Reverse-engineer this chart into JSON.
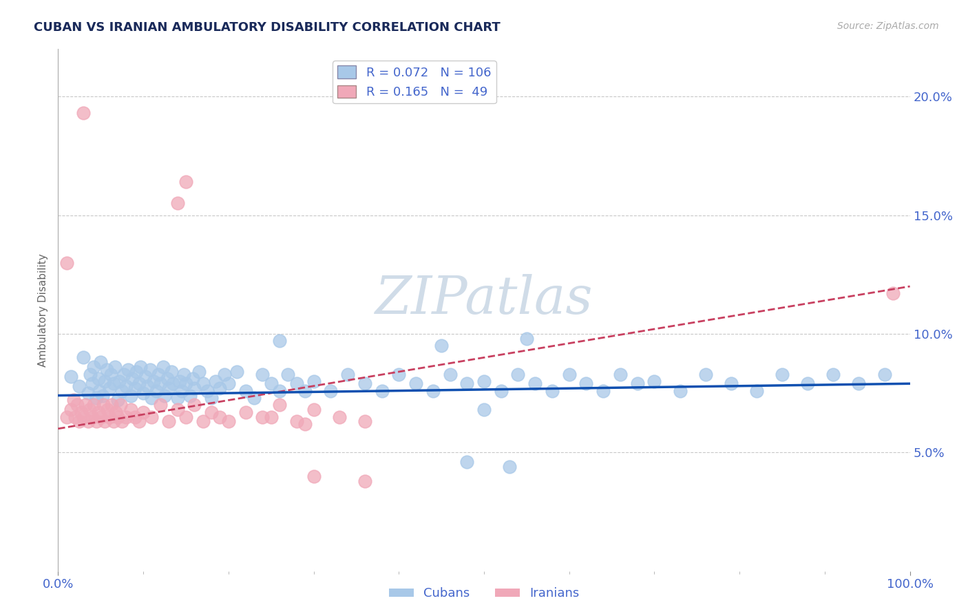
{
  "title": "CUBAN VS IRANIAN AMBULATORY DISABILITY CORRELATION CHART",
  "source": "Source: ZipAtlas.com",
  "ylabel": "Ambulatory Disability",
  "xlim": [
    0.0,
    1.0
  ],
  "ylim": [
    0.0,
    0.22
  ],
  "yticks": [
    0.05,
    0.1,
    0.15,
    0.2
  ],
  "ytick_labels": [
    "5.0%",
    "10.0%",
    "15.0%",
    "20.0%"
  ],
  "xtick_labels": [
    "0.0%",
    "100.0%"
  ],
  "cuban_color": "#a8c8e8",
  "iranian_color": "#f0a8b8",
  "trend_cuban_color": "#1050b0",
  "trend_iranian_color": "#c84060",
  "title_color": "#1a2a5a",
  "axis_color": "#4466cc",
  "background_color": "#ffffff",
  "R_cuban": 0.072,
  "N_cuban": 106,
  "R_iranian": 0.165,
  "N_iranian": 49,
  "cuban_x": [
    0.015,
    0.025,
    0.03,
    0.035,
    0.038,
    0.04,
    0.042,
    0.045,
    0.047,
    0.048,
    0.05,
    0.052,
    0.055,
    0.057,
    0.06,
    0.062,
    0.065,
    0.067,
    0.07,
    0.072,
    0.075,
    0.077,
    0.08,
    0.082,
    0.085,
    0.087,
    0.09,
    0.092,
    0.095,
    0.097,
    0.1,
    0.102,
    0.105,
    0.108,
    0.11,
    0.112,
    0.115,
    0.118,
    0.12,
    0.123,
    0.125,
    0.128,
    0.13,
    0.133,
    0.135,
    0.14,
    0.143,
    0.145,
    0.148,
    0.15,
    0.155,
    0.158,
    0.16,
    0.165,
    0.17,
    0.175,
    0.18,
    0.185,
    0.19,
    0.195,
    0.2,
    0.21,
    0.22,
    0.23,
    0.24,
    0.25,
    0.26,
    0.27,
    0.28,
    0.29,
    0.3,
    0.32,
    0.34,
    0.36,
    0.38,
    0.4,
    0.42,
    0.44,
    0.46,
    0.48,
    0.5,
    0.52,
    0.54,
    0.56,
    0.58,
    0.6,
    0.62,
    0.64,
    0.66,
    0.68,
    0.7,
    0.73,
    0.76,
    0.79,
    0.82,
    0.85,
    0.88,
    0.91,
    0.94,
    0.97,
    0.26,
    0.45,
    0.48,
    0.5,
    0.53,
    0.55
  ],
  "cuban_y": [
    0.082,
    0.078,
    0.09,
    0.075,
    0.083,
    0.079,
    0.086,
    0.073,
    0.081,
    0.076,
    0.088,
    0.074,
    0.08,
    0.085,
    0.077,
    0.083,
    0.079,
    0.086,
    0.072,
    0.08,
    0.076,
    0.083,
    0.078,
    0.085,
    0.074,
    0.081,
    0.077,
    0.084,
    0.079,
    0.086,
    0.075,
    0.082,
    0.078,
    0.085,
    0.073,
    0.08,
    0.076,
    0.083,
    0.079,
    0.086,
    0.074,
    0.081,
    0.077,
    0.084,
    0.079,
    0.073,
    0.08,
    0.076,
    0.083,
    0.079,
    0.074,
    0.081,
    0.077,
    0.084,
    0.079,
    0.076,
    0.073,
    0.08,
    0.077,
    0.083,
    0.079,
    0.084,
    0.076,
    0.073,
    0.083,
    0.079,
    0.076,
    0.083,
    0.079,
    0.076,
    0.08,
    0.076,
    0.083,
    0.079,
    0.076,
    0.083,
    0.079,
    0.076,
    0.083,
    0.079,
    0.08,
    0.076,
    0.083,
    0.079,
    0.076,
    0.083,
    0.079,
    0.076,
    0.083,
    0.079,
    0.08,
    0.076,
    0.083,
    0.079,
    0.076,
    0.083,
    0.079,
    0.083,
    0.079,
    0.083,
    0.097,
    0.095,
    0.046,
    0.068,
    0.044,
    0.098
  ],
  "iranian_x": [
    0.01,
    0.015,
    0.018,
    0.02,
    0.022,
    0.025,
    0.027,
    0.03,
    0.032,
    0.035,
    0.037,
    0.04,
    0.042,
    0.045,
    0.047,
    0.05,
    0.053,
    0.055,
    0.058,
    0.06,
    0.063,
    0.065,
    0.068,
    0.07,
    0.073,
    0.075,
    0.08,
    0.085,
    0.09,
    0.095,
    0.1,
    0.11,
    0.12,
    0.13,
    0.14,
    0.15,
    0.16,
    0.17,
    0.18,
    0.19,
    0.2,
    0.22,
    0.24,
    0.26,
    0.28,
    0.3,
    0.33,
    0.36,
    0.98
  ],
  "iranian_y": [
    0.065,
    0.068,
    0.072,
    0.065,
    0.07,
    0.063,
    0.067,
    0.065,
    0.07,
    0.063,
    0.068,
    0.065,
    0.07,
    0.063,
    0.067,
    0.065,
    0.07,
    0.063,
    0.068,
    0.065,
    0.07,
    0.063,
    0.067,
    0.065,
    0.07,
    0.063,
    0.065,
    0.068,
    0.065,
    0.063,
    0.067,
    0.065,
    0.07,
    0.063,
    0.068,
    0.065,
    0.07,
    0.063,
    0.067,
    0.065,
    0.063,
    0.067,
    0.065,
    0.07,
    0.063,
    0.068,
    0.065,
    0.063,
    0.117
  ],
  "outlier_iranian_x": [
    0.01,
    0.03,
    0.14,
    0.15,
    0.25,
    0.29,
    0.3,
    0.36
  ],
  "outlier_iranian_y": [
    0.13,
    0.193,
    0.155,
    0.164,
    0.065,
    0.062,
    0.04,
    0.038
  ],
  "watermark": "ZIPatlas",
  "watermark_color": "#d0dce8"
}
